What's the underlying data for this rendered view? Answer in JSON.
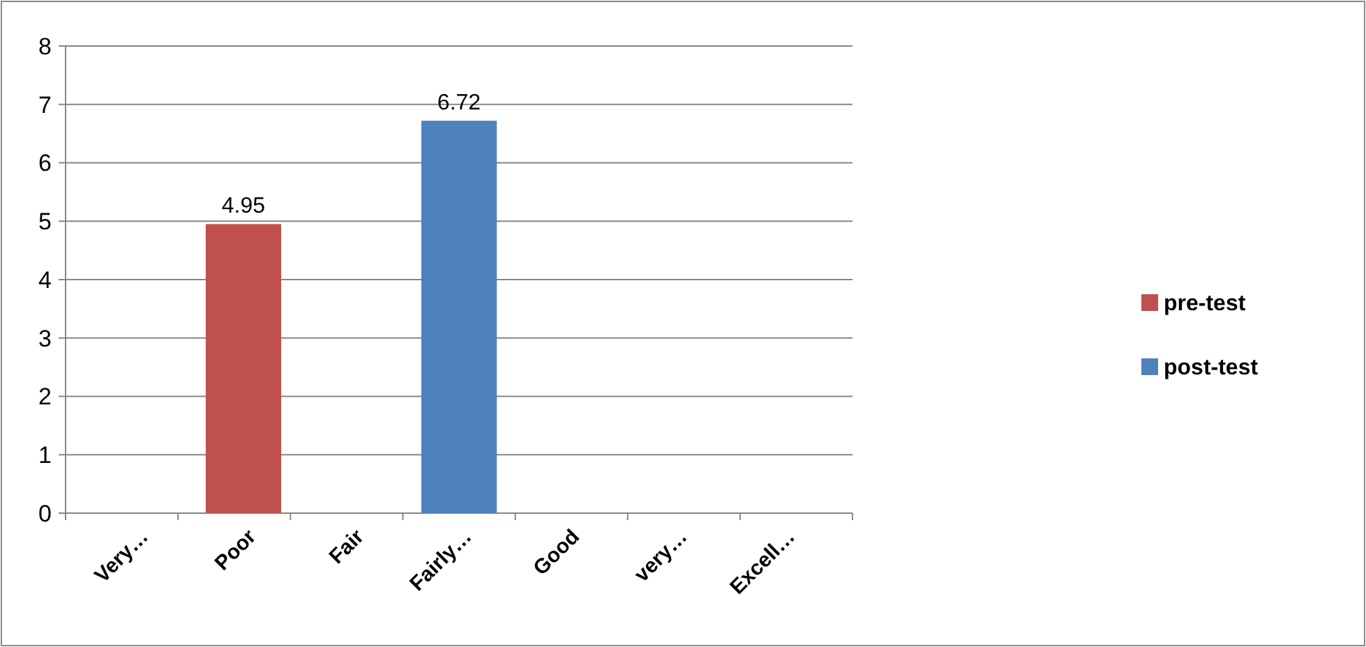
{
  "chart_data": {
    "type": "bar",
    "categories": [
      "Very…",
      "Poor",
      "Fair",
      "Fairly…",
      "Good",
      "very…",
      "Excell…"
    ],
    "series": [
      {
        "name": "pre-test",
        "color": "#c0504d",
        "values": [
          null,
          4.95,
          null,
          null,
          null,
          null,
          null
        ]
      },
      {
        "name": "post-test",
        "color": "#4f81bd",
        "values": [
          null,
          null,
          null,
          6.72,
          null,
          null,
          null
        ]
      }
    ],
    "ylim": [
      0,
      8
    ],
    "yticks": [
      0,
      1,
      2,
      3,
      4,
      5,
      6,
      7,
      8
    ],
    "grid": "y",
    "legend": "right",
    "data_labels": true
  }
}
